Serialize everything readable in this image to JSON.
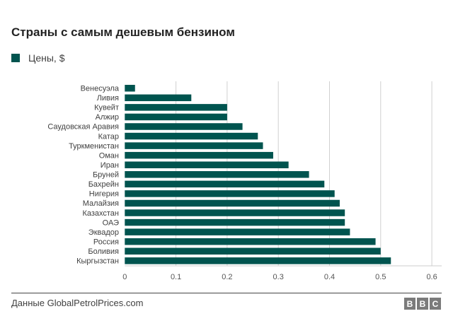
{
  "chart_data": {
    "type": "bar",
    "orientation": "horizontal",
    "title": "Страны с самым дешевым бензином",
    "categories": [
      "Венесуэла",
      "Ливия",
      "Кувейт",
      "Алжир",
      "Саудовская Аравия",
      "Катар",
      "Туркменистан",
      "Оман",
      "Иран",
      "Бруней",
      "Бахрейн",
      "Нигерия",
      "Малайзия",
      "Казахстан",
      "ОАЭ",
      "Эквадор",
      "Россия",
      "Боливия",
      "Кыргызстан"
    ],
    "series": [
      {
        "name": "Цены, $",
        "values": [
          0.02,
          0.13,
          0.2,
          0.2,
          0.23,
          0.26,
          0.27,
          0.29,
          0.32,
          0.36,
          0.39,
          0.41,
          0.42,
          0.43,
          0.43,
          0.44,
          0.49,
          0.5,
          0.52
        ]
      }
    ],
    "xlim": [
      0,
      0.6
    ],
    "xticks": [
      "0",
      "0.1",
      "0.2",
      "0.3",
      "0.4",
      "0.5",
      "0.6"
    ],
    "grid": true,
    "legend": "top-left",
    "color": "#00544f"
  },
  "footer": {
    "source": "Данные GlobalPetrolPrices.com",
    "logo": [
      "B",
      "B",
      "C"
    ]
  }
}
